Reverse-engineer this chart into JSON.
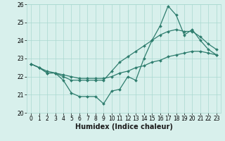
{
  "xlabel": "Humidex (Indice chaleur)",
  "x": [
    0,
    1,
    2,
    3,
    4,
    5,
    6,
    7,
    8,
    9,
    10,
    11,
    12,
    13,
    14,
    15,
    16,
    17,
    18,
    19,
    20,
    21,
    22,
    23
  ],
  "line1": [
    22.7,
    22.5,
    22.2,
    22.2,
    21.8,
    21.1,
    20.9,
    20.9,
    20.9,
    20.5,
    21.2,
    21.3,
    22.0,
    21.8,
    23.0,
    24.0,
    24.8,
    25.9,
    25.4,
    24.3,
    24.6,
    24.0,
    23.5,
    23.2
  ],
  "line2": [
    22.7,
    22.5,
    22.2,
    22.2,
    22.0,
    21.8,
    21.8,
    21.8,
    21.8,
    21.8,
    22.3,
    22.8,
    23.1,
    23.4,
    23.7,
    24.0,
    24.3,
    24.5,
    24.6,
    24.5,
    24.5,
    24.2,
    23.8,
    23.5
  ],
  "line3": [
    22.7,
    22.5,
    22.3,
    22.2,
    22.1,
    22.0,
    21.9,
    21.9,
    21.9,
    21.9,
    22.0,
    22.2,
    22.3,
    22.5,
    22.6,
    22.8,
    22.9,
    23.1,
    23.2,
    23.3,
    23.4,
    23.4,
    23.3,
    23.2
  ],
  "line_color": "#2e7d6e",
  "bg_color": "#d8f0ec",
  "grid_color": "#aad8d0",
  "ylim": [
    20,
    26
  ],
  "xlim": [
    -0.5,
    23.5
  ],
  "yticks": [
    20,
    21,
    22,
    23,
    24,
    25,
    26
  ],
  "xticks": [
    0,
    1,
    2,
    3,
    4,
    5,
    6,
    7,
    8,
    9,
    10,
    11,
    12,
    13,
    14,
    15,
    16,
    17,
    18,
    19,
    20,
    21,
    22,
    23
  ],
  "tick_fontsize": 5.5,
  "label_fontsize": 7.0,
  "marker_size": 2.0,
  "line_width": 0.9
}
